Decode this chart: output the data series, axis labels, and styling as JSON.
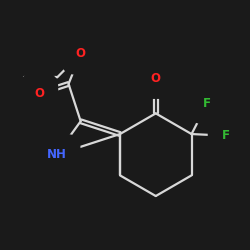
{
  "bg_color": "#1a1a1a",
  "bond_color": "#d8d8d8",
  "bond_width": 1.6,
  "atom_colors": {
    "O": "#ff2222",
    "N": "#4466ff",
    "F": "#33bb33",
    "C": "#d8d8d8"
  },
  "figsize": [
    2.5,
    2.5
  ],
  "dpi": 100
}
